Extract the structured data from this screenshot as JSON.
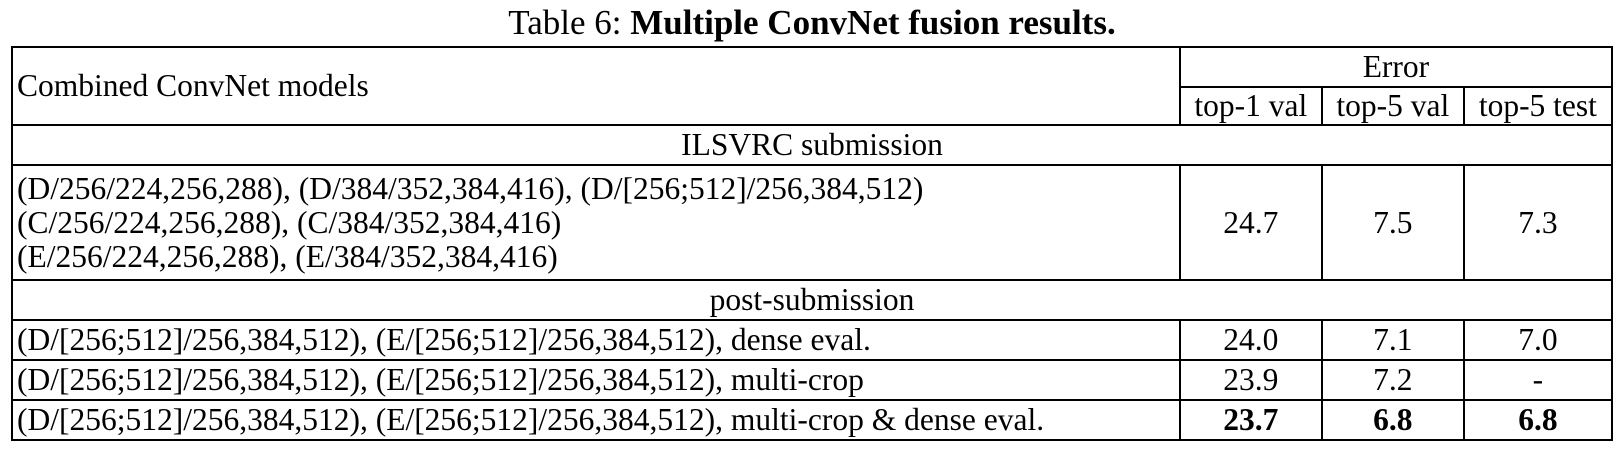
{
  "caption": {
    "prefix": "Table 6:",
    "title": "Multiple ConvNet fusion results."
  },
  "header": {
    "models_label": "Combined ConvNet models",
    "error_label": "Error",
    "columns": [
      "top-1 val",
      "top-5 val",
      "top-5 test"
    ]
  },
  "sections": [
    {
      "title": "ILSVRC submission",
      "rows": [
        {
          "model_lines": [
            "(D/256/224,256,288), (D/384/352,384,416), (D/[256;512]/256,384,512)",
            "(C/256/224,256,288), (C/384/352,384,416)",
            "(E/256/224,256,288), (E/384/352,384,416)"
          ],
          "values": [
            "24.7",
            "7.5",
            "7.3"
          ]
        }
      ]
    },
    {
      "title": "post-submission",
      "rows": [
        {
          "model_lines": [
            "(D/[256;512]/256,384,512), (E/[256;512]/256,384,512), dense eval."
          ],
          "values": [
            "24.0",
            "7.1",
            "7.0"
          ]
        },
        {
          "model_lines": [
            "(D/[256;512]/256,384,512), (E/[256;512]/256,384,512), multi-crop"
          ],
          "values": [
            "23.9",
            "7.2",
            "-"
          ]
        },
        {
          "model_lines": [
            "(D/[256;512]/256,384,512), (E/[256;512]/256,384,512), multi-crop & dense eval."
          ],
          "values": [
            "23.7",
            "6.8",
            "6.8"
          ],
          "bold_values": true
        }
      ]
    }
  ]
}
